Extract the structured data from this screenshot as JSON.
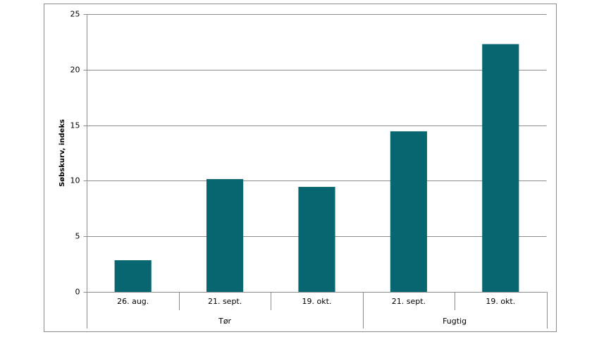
{
  "chart_data": {
    "type": "bar",
    "y_label": "Søbskurv, indeks",
    "groups": [
      {
        "label": "Tør",
        "categories": [
          "26. aug.",
          "21. sept.",
          "19. okt."
        ]
      },
      {
        "label": "Fugtig",
        "categories": [
          "21. sept.",
          "19. okt."
        ]
      }
    ],
    "values": [
      2.85,
      10.15,
      9.45,
      14.45,
      22.3
    ],
    "color": "#086670",
    "ylim": [
      0,
      25
    ],
    "yticks": [
      0,
      5,
      10,
      15,
      20,
      25
    ],
    "grid": true
  }
}
